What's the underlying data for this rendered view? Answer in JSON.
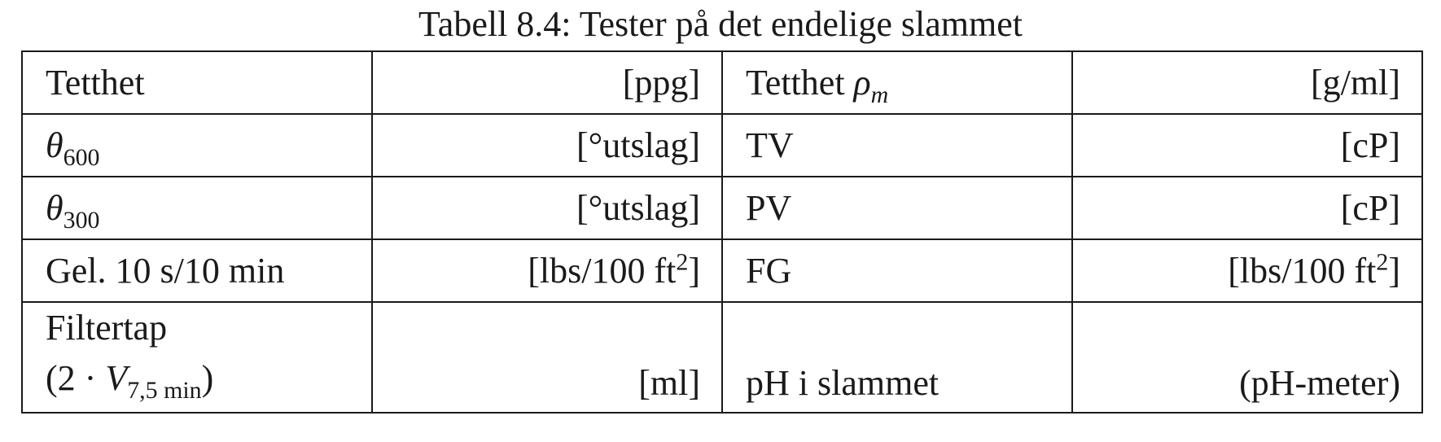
{
  "caption": "Tabell 8.4: Tester på det endelige slammet",
  "rows": [
    {
      "label_left": "Tetthet",
      "unit_left": "[ppg]",
      "label_right_text": "Tetthet ",
      "label_right_sym": "ρ",
      "label_right_sub": "m",
      "unit_right": "[g/ml]"
    },
    {
      "label_left_sym": "θ",
      "label_left_sub": "600",
      "unit_left": "[°utslag]",
      "label_right": "TV",
      "unit_right": "[cP]"
    },
    {
      "label_left_sym": "θ",
      "label_left_sub": "300",
      "unit_left": "[°utslag]",
      "label_right": "PV",
      "unit_right": "[cP]"
    },
    {
      "label_left": "Gel. 10 s/10 min",
      "unit_left_base": "[lbs/100 ft",
      "unit_left_sup": "2",
      "unit_left_close": "]",
      "label_right": "FG",
      "unit_right_base": "[lbs/100 ft",
      "unit_right_sup": "2",
      "unit_right_close": "]"
    },
    {
      "label_left_line1": "Filtertap",
      "label_left_open": "(2 · ",
      "label_left_sym": "V",
      "label_left_sub": "7,5 min",
      "label_left_close": ")",
      "unit_left": "[ml]",
      "label_right": "pH i slammet",
      "unit_right": "(pH-meter)"
    }
  ]
}
